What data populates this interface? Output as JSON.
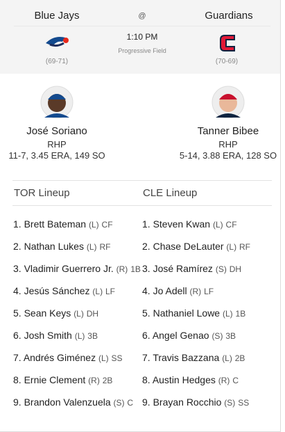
{
  "header": {
    "away": {
      "name": "Blue Jays",
      "record": "(69-71)"
    },
    "at": "@",
    "home": {
      "name": "Guardians",
      "record": "(70-69)"
    },
    "time": "1:10 PM",
    "venue": "Progressive Field"
  },
  "pitchers": [
    {
      "name": "José Soriano",
      "throws": "RHP",
      "stats": "11-7, 3.45 ERA, 149 SO"
    },
    {
      "name": "Tanner Bibee",
      "throws": "RHP",
      "stats": "5-14, 3.88 ERA, 128 SO"
    }
  ],
  "lineups": [
    {
      "title": "TOR Lineup",
      "players": [
        {
          "order": "1.",
          "name": "Brett Bateman",
          "bats": "(L)",
          "pos": "CF"
        },
        {
          "order": "2.",
          "name": "Nathan Lukes",
          "bats": "(L)",
          "pos": "RF"
        },
        {
          "order": "3.",
          "name": "Vladimir Guerrero Jr.",
          "bats": "(R)",
          "pos": "1B"
        },
        {
          "order": "4.",
          "name": "Jesús Sánchez",
          "bats": "(L)",
          "pos": "LF"
        },
        {
          "order": "5.",
          "name": "Sean Keys",
          "bats": "(L)",
          "pos": "DH"
        },
        {
          "order": "6.",
          "name": "Josh Smith",
          "bats": "(L)",
          "pos": "3B"
        },
        {
          "order": "7.",
          "name": "Andrés Giménez",
          "bats": "(L)",
          "pos": "SS"
        },
        {
          "order": "8.",
          "name": "Ernie Clement",
          "bats": "(R)",
          "pos": "2B"
        },
        {
          "order": "9.",
          "name": "Brandon Valenzuela",
          "bats": "(S)",
          "pos": "C"
        }
      ]
    },
    {
      "title": "CLE Lineup",
      "players": [
        {
          "order": "1.",
          "name": "Steven Kwan",
          "bats": "(L)",
          "pos": "CF"
        },
        {
          "order": "2.",
          "name": "Chase DeLauter",
          "bats": "(L)",
          "pos": "RF"
        },
        {
          "order": "3.",
          "name": "José Ramírez",
          "bats": "(S)",
          "pos": "DH"
        },
        {
          "order": "4.",
          "name": "Jo Adell",
          "bats": "(R)",
          "pos": "LF"
        },
        {
          "order": "5.",
          "name": "Nathaniel Lowe",
          "bats": "(L)",
          "pos": "1B"
        },
        {
          "order": "6.",
          "name": "Angel Genao",
          "bats": "(S)",
          "pos": "3B"
        },
        {
          "order": "7.",
          "name": "Travis Bazzana",
          "bats": "(L)",
          "pos": "2B"
        },
        {
          "order": "8.",
          "name": "Austin Hedges",
          "bats": "(R)",
          "pos": "C"
        },
        {
          "order": "9.",
          "name": "Brayan Rocchio",
          "bats": "(S)",
          "pos": "SS"
        }
      ]
    }
  ]
}
